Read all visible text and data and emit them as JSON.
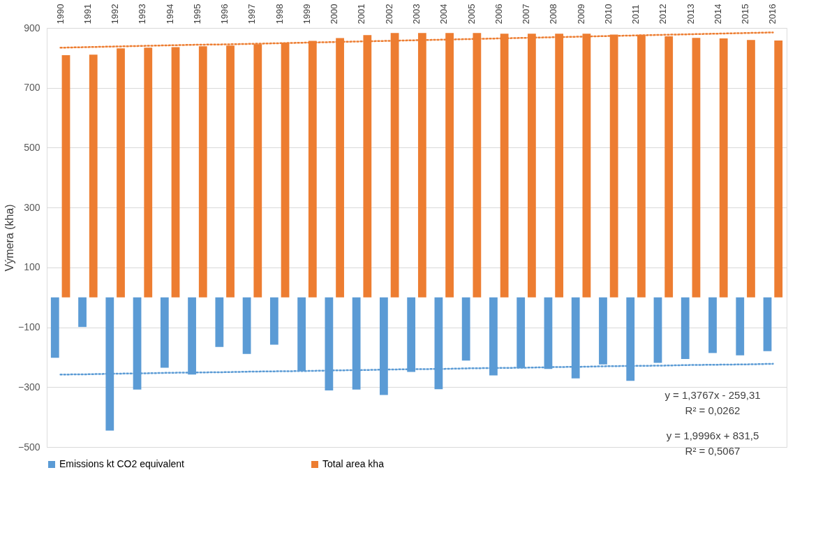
{
  "chart_data": {
    "type": "bar",
    "ylabel": "Výmera (kha)",
    "categories": [
      "1990",
      "1991",
      "1992",
      "1993",
      "1994",
      "1995",
      "1996",
      "1997",
      "1998",
      "1999",
      "2000",
      "2001",
      "2002",
      "2003",
      "2004",
      "2005",
      "2006",
      "2007",
      "2008",
      "2009",
      "2010",
      "2011",
      "2012",
      "2013",
      "2014",
      "2015",
      "2016"
    ],
    "series": [
      {
        "name": "Emissions kt CO2 equivalent",
        "color": "#5b9bd5",
        "values": [
          -202,
          -99,
          -445,
          -308,
          -235,
          -258,
          -166,
          -189,
          -158,
          -246,
          -311,
          -308,
          -326,
          -249,
          -307,
          -211,
          -261,
          -237,
          -239,
          -271,
          -224,
          -279,
          -219,
          -206,
          -186,
          -194,
          -180
        ]
      },
      {
        "name": "Total area kha",
        "color": "#ed7d31",
        "values": [
          809,
          811,
          832,
          834,
          836,
          839,
          841,
          846,
          851,
          857,
          866,
          876,
          883,
          883,
          883,
          883,
          881,
          881,
          881,
          881,
          878,
          877,
          872,
          867,
          865,
          860,
          858
        ]
      },
      {
        "type": "line",
        "color": "#5b9bd5",
        "line_style": "dotted",
        "values": [
          -258,
          -257,
          -255,
          -254,
          -252,
          -251,
          -250,
          -248,
          -247,
          -246,
          -244,
          -243,
          -241,
          -240,
          -239,
          -237,
          -236,
          -235,
          -233,
          -232,
          -230,
          -229,
          -228,
          -226,
          -225,
          -224,
          -222
        ]
      },
      {
        "type": "line",
        "color": "#ed7d31",
        "line_style": "dotted",
        "values": [
          834,
          836,
          838,
          840,
          842,
          844,
          845,
          847,
          849,
          851,
          853,
          855,
          857,
          859,
          861,
          863,
          865,
          867,
          869,
          871,
          873,
          875,
          877,
          879,
          881,
          883,
          885
        ]
      }
    ],
    "ylim": [
      -500,
      900
    ],
    "yticks": [
      -500,
      -300,
      -100,
      100,
      300,
      500,
      700,
      900
    ],
    "grid": "y",
    "legend": "bottom",
    "annotations": [
      "y = 1,3767x - 259,31",
      "R² = 0,0262",
      "y = 1,9996x + 831,5",
      "R² = 0,5067"
    ]
  }
}
